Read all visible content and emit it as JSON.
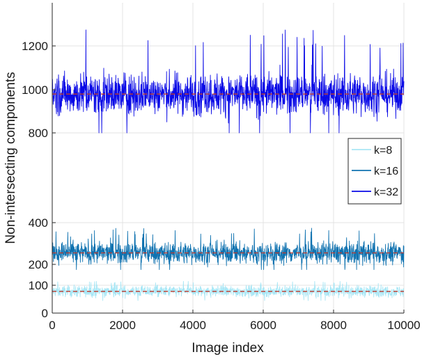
{
  "chart_data": {
    "type": "line",
    "title": "",
    "xlabel": "Image index",
    "ylabel": "Non-intersecting components",
    "xlim": [
      0,
      10000
    ],
    "ylim_display": [
      0,
      1300
    ],
    "x_ticks": [
      0,
      2000,
      4000,
      6000,
      8000,
      10000
    ],
    "x_tick_labels": [
      "0",
      "2000",
      "4000",
      "6000",
      "8000",
      "10000"
    ],
    "y_ticks": [
      0,
      100,
      200,
      400,
      800,
      1000,
      1200
    ],
    "y_tick_labels": [
      "0",
      "100",
      "200",
      "400",
      "800",
      "1000",
      "1200"
    ],
    "y_axis_note": "broken y-axis: dense sections 0–450 and 750–1300",
    "grid": true,
    "legend_position": "right",
    "series": [
      {
        "name": "k=8",
        "color": "#a8e6f5",
        "mean": 78,
        "typical_range": [
          55,
          105
        ],
        "extremes": [
          45,
          120
        ],
        "mean_line_color": "#c0392b"
      },
      {
        "name": "k=16",
        "color": "#0f72b0",
        "mean": 255,
        "typical_range": [
          195,
          325
        ],
        "extremes": [
          175,
          375
        ],
        "mean_line_color": "#c0392b"
      },
      {
        "name": "k=32",
        "color": "#0a0ae6",
        "mean": 980,
        "typical_range": [
          870,
          1110
        ],
        "extremes": [
          800,
          1280
        ],
        "mean_line_color": "#c0392b"
      }
    ]
  }
}
